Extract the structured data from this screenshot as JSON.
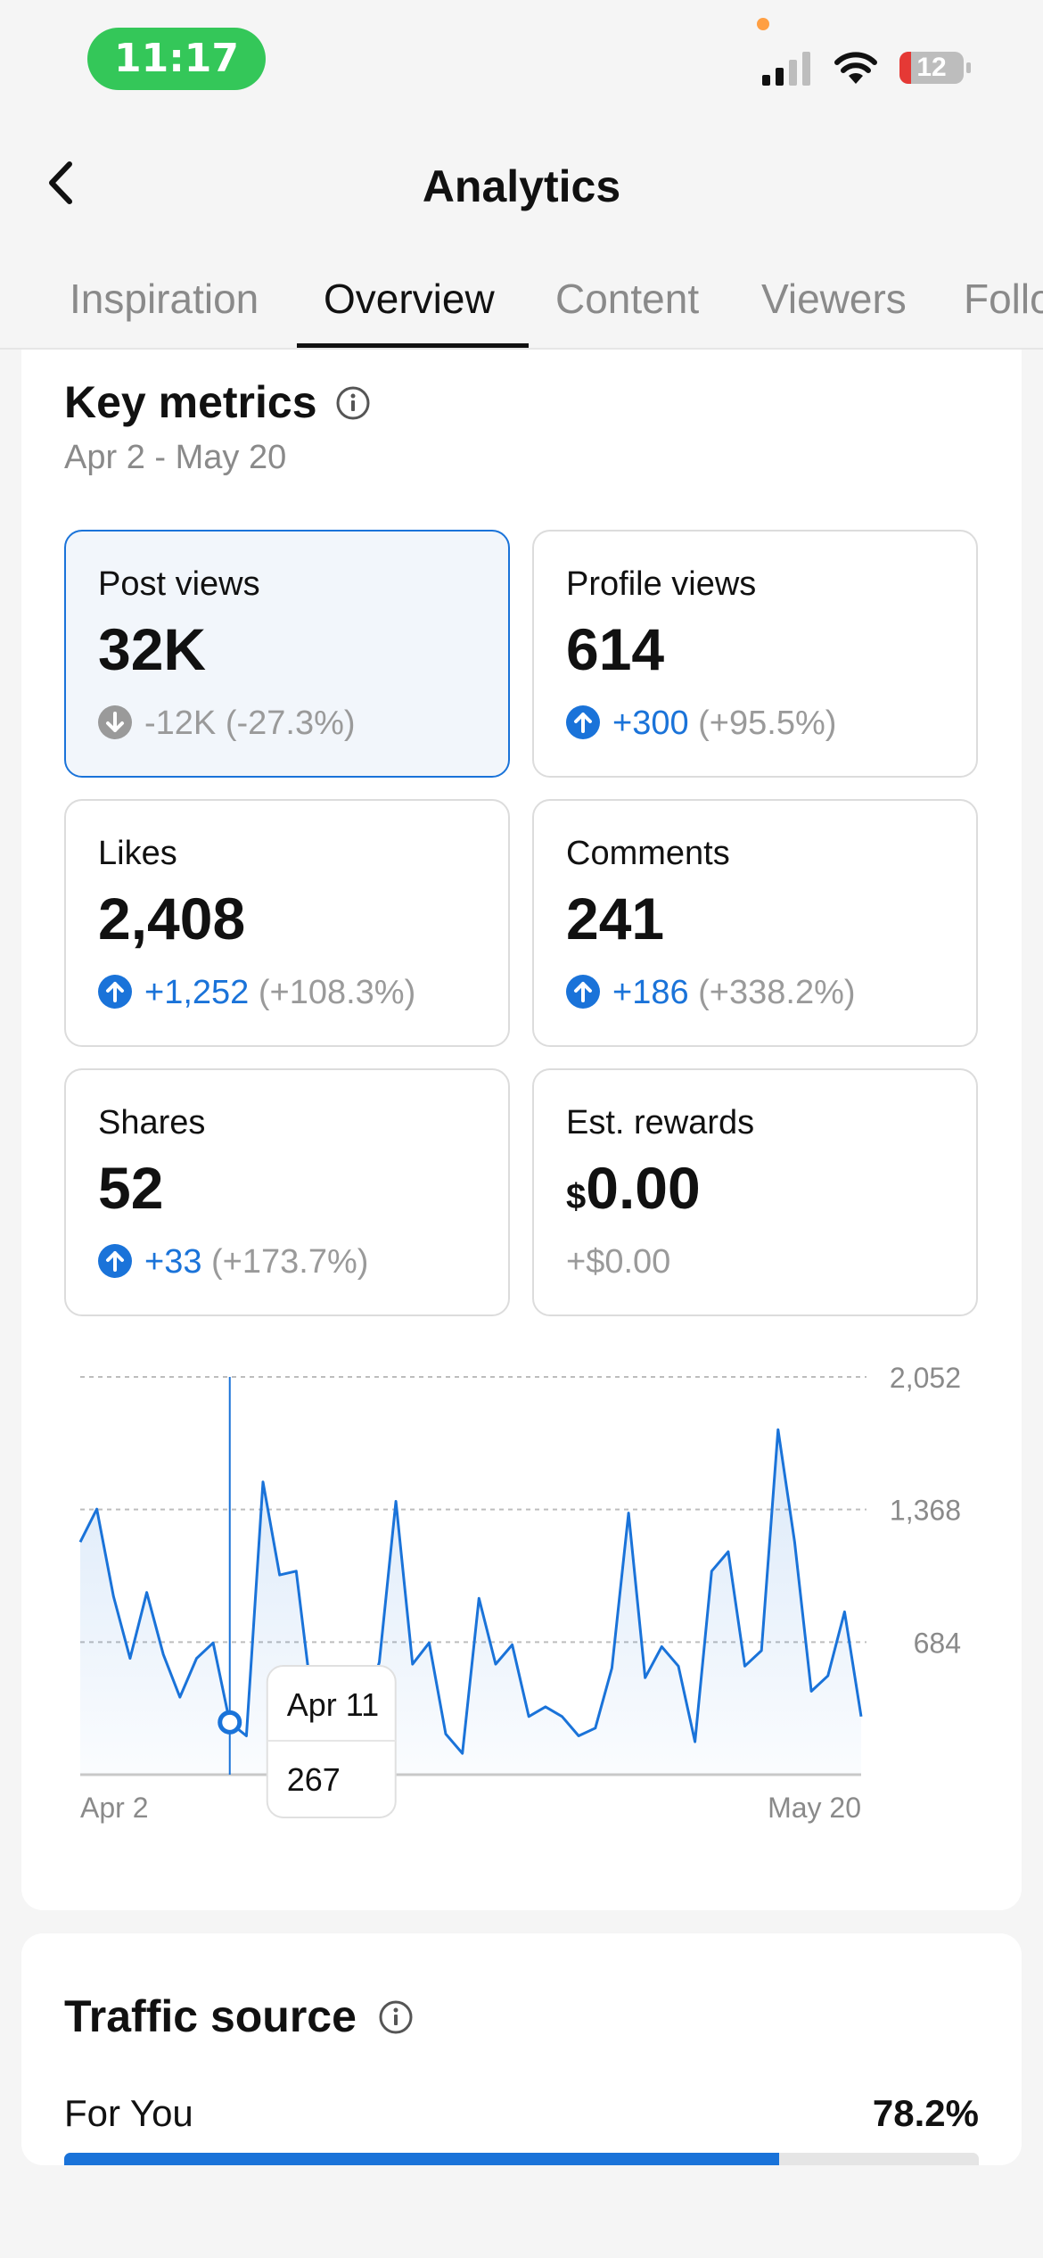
{
  "status_bar": {
    "time": "11:17",
    "battery": "12",
    "icons": [
      "signal-icon",
      "wifi-icon",
      "battery-icon"
    ]
  },
  "header": {
    "title": "Analytics",
    "back_icon": "chevron-left-icon"
  },
  "tabs": [
    {
      "label": "Inspiration",
      "active": false
    },
    {
      "label": "Overview",
      "active": true
    },
    {
      "label": "Content",
      "active": false
    },
    {
      "label": "Viewers",
      "active": false
    },
    {
      "label": "Followers",
      "active": false
    }
  ],
  "key_metrics": {
    "title": "Key metrics",
    "date_range": "Apr 2 - May 20",
    "metrics": [
      {
        "label": "Post views",
        "value": "32K",
        "delta": "-12K",
        "pct": "(-27.3%)",
        "direction": "down",
        "selected": true
      },
      {
        "label": "Profile views",
        "value": "614",
        "delta": "+300",
        "pct": "(+95.5%)",
        "direction": "up",
        "selected": false
      },
      {
        "label": "Likes",
        "value": "2,408",
        "delta": "+1,252",
        "pct": "(+108.3%)",
        "direction": "up",
        "selected": false
      },
      {
        "label": "Comments",
        "value": "241",
        "delta": "+186",
        "pct": "(+338.2%)",
        "direction": "up",
        "selected": false
      },
      {
        "label": "Shares",
        "value": "52",
        "delta": "+33",
        "pct": "(+173.7%)",
        "direction": "up",
        "selected": false
      },
      {
        "label": "Est. rewards",
        "currency": "$",
        "value": "0.00",
        "delta": "+$0.00",
        "pct": "",
        "direction": "none",
        "selected": false
      }
    ]
  },
  "chart_data": {
    "type": "area",
    "x_start_label": "Apr 2",
    "x_end_label": "May 20",
    "y_ticks": [
      684,
      1368,
      2052
    ],
    "y_tick_labels": [
      "684",
      "1,368",
      "2,052"
    ],
    "ylim": [
      0,
      2052
    ],
    "grid": true,
    "color": "#1a73d9",
    "values": [
      1200,
      1370,
      920,
      600,
      940,
      620,
      400,
      600,
      680,
      270,
      200,
      1510,
      1030,
      1050,
      350,
      200,
      420,
      300,
      580,
      1410,
      570,
      680,
      210,
      110,
      910,
      570,
      670,
      300,
      350,
      300,
      200,
      240,
      550,
      1350,
      500,
      660,
      560,
      170,
      1050,
      1150,
      560,
      640,
      1780,
      1200,
      430,
      510,
      840,
      300
    ],
    "highlight": {
      "index": 9,
      "date": "Apr 11",
      "value": "267"
    }
  },
  "traffic_source": {
    "title": "Traffic source",
    "items": [
      {
        "label": "For You",
        "value": "78.2%",
        "fraction": 0.782
      }
    ]
  },
  "colors": {
    "accent": "#1a73d9",
    "status_green": "#34c759",
    "battery_red": "#e53935"
  }
}
